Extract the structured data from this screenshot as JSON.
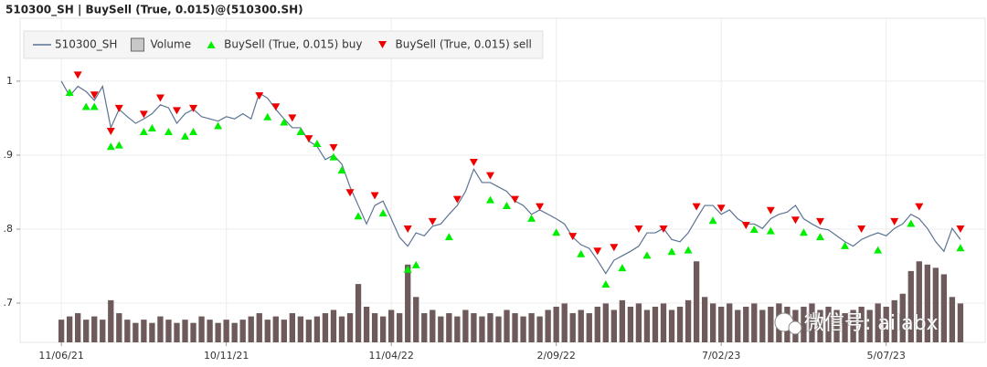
{
  "chart_data": {
    "type": "line",
    "title": "510300_SH | BuySell (True, 0.015)@(510300.SH)",
    "watermark": "微信号: ailabx",
    "x": [
      0,
      1,
      2,
      3,
      4,
      5,
      6,
      7,
      8,
      9,
      10,
      11,
      12,
      13,
      14,
      15,
      16,
      17,
      18,
      19,
      20,
      21,
      22,
      23,
      24,
      25,
      26,
      27,
      28,
      29,
      30,
      31,
      32,
      33,
      34,
      35,
      36,
      37,
      38,
      39,
      40,
      41,
      42,
      43,
      44,
      45,
      46,
      47,
      48,
      49,
      50,
      51,
      52,
      53,
      54,
      55,
      56,
      57,
      58,
      59,
      60,
      61,
      62,
      63,
      64,
      65,
      66,
      67,
      68,
      69,
      70,
      71,
      72,
      73,
      74,
      75,
      76,
      77,
      78,
      79,
      80,
      81,
      82,
      83,
      84,
      85,
      86,
      87,
      88,
      89,
      90,
      91,
      92,
      93,
      94,
      95,
      96,
      97,
      98,
      99,
      100,
      101,
      102,
      103,
      104,
      105,
      106,
      107,
      108,
      109
    ],
    "xlim": [
      -5,
      112
    ],
    "xticks": [
      {
        "value": 0,
        "label": "11/06/21"
      },
      {
        "value": 20,
        "label": "10/11/21"
      },
      {
        "value": 40,
        "label": "11/04/22"
      },
      {
        "value": 60,
        "label": "2/09/22"
      },
      {
        "value": 80,
        "label": "7/02/23"
      },
      {
        "value": 100,
        "label": "5/07/23"
      }
    ],
    "ylim": [
      0.647,
      1.085
    ],
    "yticks": [
      {
        "value": 0.7,
        "label": ".7"
      },
      {
        "value": 0.8,
        "label": ".8"
      },
      {
        "value": 0.9,
        "label": ".9"
      },
      1
    ],
    "y2lim": [
      0,
      100
    ],
    "grid": true,
    "legend": "top-left",
    "series": [
      {
        "name": "510300_SH",
        "type": "line",
        "color": "#5b7393",
        "values": [
          1.0,
          0.98,
          0.993,
          0.986,
          0.974,
          0.993,
          0.937,
          0.962,
          0.952,
          0.943,
          0.949,
          0.956,
          0.968,
          0.964,
          0.943,
          0.956,
          0.962,
          0.952,
          0.949,
          0.946,
          0.952,
          0.949,
          0.956,
          0.949,
          0.984,
          0.977,
          0.962,
          0.949,
          0.937,
          0.937,
          0.919,
          0.912,
          0.894,
          0.9,
          0.888,
          0.857,
          0.832,
          0.807,
          0.832,
          0.838,
          0.814,
          0.789,
          0.777,
          0.795,
          0.791,
          0.804,
          0.807,
          0.82,
          0.832,
          0.851,
          0.881,
          0.863,
          0.863,
          0.857,
          0.851,
          0.838,
          0.832,
          0.82,
          0.826,
          0.82,
          0.814,
          0.807,
          0.789,
          0.779,
          0.774,
          0.758,
          0.74,
          0.758,
          0.764,
          0.77,
          0.777,
          0.795,
          0.795,
          0.801,
          0.786,
          0.783,
          0.795,
          0.814,
          0.832,
          0.832,
          0.82,
          0.826,
          0.814,
          0.807,
          0.807,
          0.801,
          0.814,
          0.82,
          0.823,
          0.832,
          0.814,
          0.807,
          0.801,
          0.799,
          0.791,
          0.783,
          0.777,
          0.786,
          0.791,
          0.795,
          0.791,
          0.801,
          0.807,
          0.82,
          0.814,
          0.801,
          0.783,
          0.77,
          0.801,
          0.786
        ]
      },
      {
        "name": "Volume",
        "type": "bar",
        "axis": "y2",
        "color": "#6e5a5a",
        "values": [
          7,
          8,
          9,
          7,
          8,
          7,
          13,
          9,
          7,
          6,
          7,
          6,
          8,
          7,
          6,
          7,
          6,
          8,
          7,
          6,
          7,
          6,
          7,
          8,
          9,
          7,
          8,
          7,
          9,
          8,
          7,
          8,
          9,
          10,
          8,
          9,
          18,
          11,
          9,
          8,
          10,
          9,
          24,
          14,
          9,
          10,
          8,
          9,
          8,
          10,
          9,
          8,
          9,
          8,
          10,
          9,
          8,
          9,
          8,
          10,
          11,
          12,
          9,
          10,
          9,
          11,
          12,
          10,
          13,
          11,
          12,
          10,
          11,
          12,
          10,
          11,
          13,
          25,
          14,
          12,
          11,
          12,
          10,
          11,
          12,
          10,
          11,
          12,
          11,
          10,
          11,
          12,
          10,
          11,
          10,
          9,
          10,
          11,
          10,
          12,
          11,
          13,
          15,
          22,
          25,
          24,
          23,
          21,
          14,
          12
        ]
      },
      {
        "name": "BuySell (True, 0.015) buy",
        "type": "scatter",
        "marker": "triangle-up",
        "color": "#00ee00",
        "x": [
          1,
          3,
          4,
          6,
          7,
          10,
          11,
          13,
          15,
          16,
          19,
          25,
          27,
          29,
          31,
          33,
          34,
          36,
          39,
          42,
          43,
          47,
          52,
          54,
          57,
          60,
          63,
          66,
          68,
          71,
          74,
          76,
          79,
          84,
          86,
          90,
          92,
          95,
          99,
          103,
          109
        ],
        "values": [
          0.985,
          0.966,
          0.966,
          0.912,
          0.914,
          0.932,
          0.937,
          0.932,
          0.926,
          0.932,
          0.94,
          0.952,
          0.945,
          0.932,
          0.916,
          0.898,
          0.88,
          0.818,
          0.822,
          0.746,
          0.752,
          0.79,
          0.84,
          0.832,
          0.815,
          0.796,
          0.767,
          0.726,
          0.748,
          0.765,
          0.77,
          0.772,
          0.812,
          0.8,
          0.798,
          0.796,
          0.79,
          0.778,
          0.772,
          0.808,
          0.775
        ]
      },
      {
        "name": "BuySell (True, 0.015) sell",
        "type": "scatter",
        "marker": "triangle-down",
        "color": "#ee0000",
        "x": [
          2,
          4,
          6,
          7,
          10,
          12,
          14,
          16,
          24,
          26,
          28,
          30,
          33,
          35,
          38,
          42,
          45,
          48,
          50,
          52,
          55,
          58,
          62,
          65,
          67,
          70,
          73,
          77,
          80,
          83,
          86,
          89,
          92,
          97,
          101,
          104,
          109
        ],
        "values": [
          1.008,
          0.981,
          0.932,
          0.963,
          0.955,
          0.977,
          0.96,
          0.963,
          0.98,
          0.965,
          0.95,
          0.922,
          0.91,
          0.849,
          0.845,
          0.8,
          0.81,
          0.84,
          0.89,
          0.872,
          0.84,
          0.83,
          0.79,
          0.77,
          0.775,
          0.8,
          0.8,
          0.83,
          0.828,
          0.805,
          0.825,
          0.812,
          0.81,
          0.8,
          0.81,
          0.83,
          0.8
        ]
      }
    ]
  }
}
